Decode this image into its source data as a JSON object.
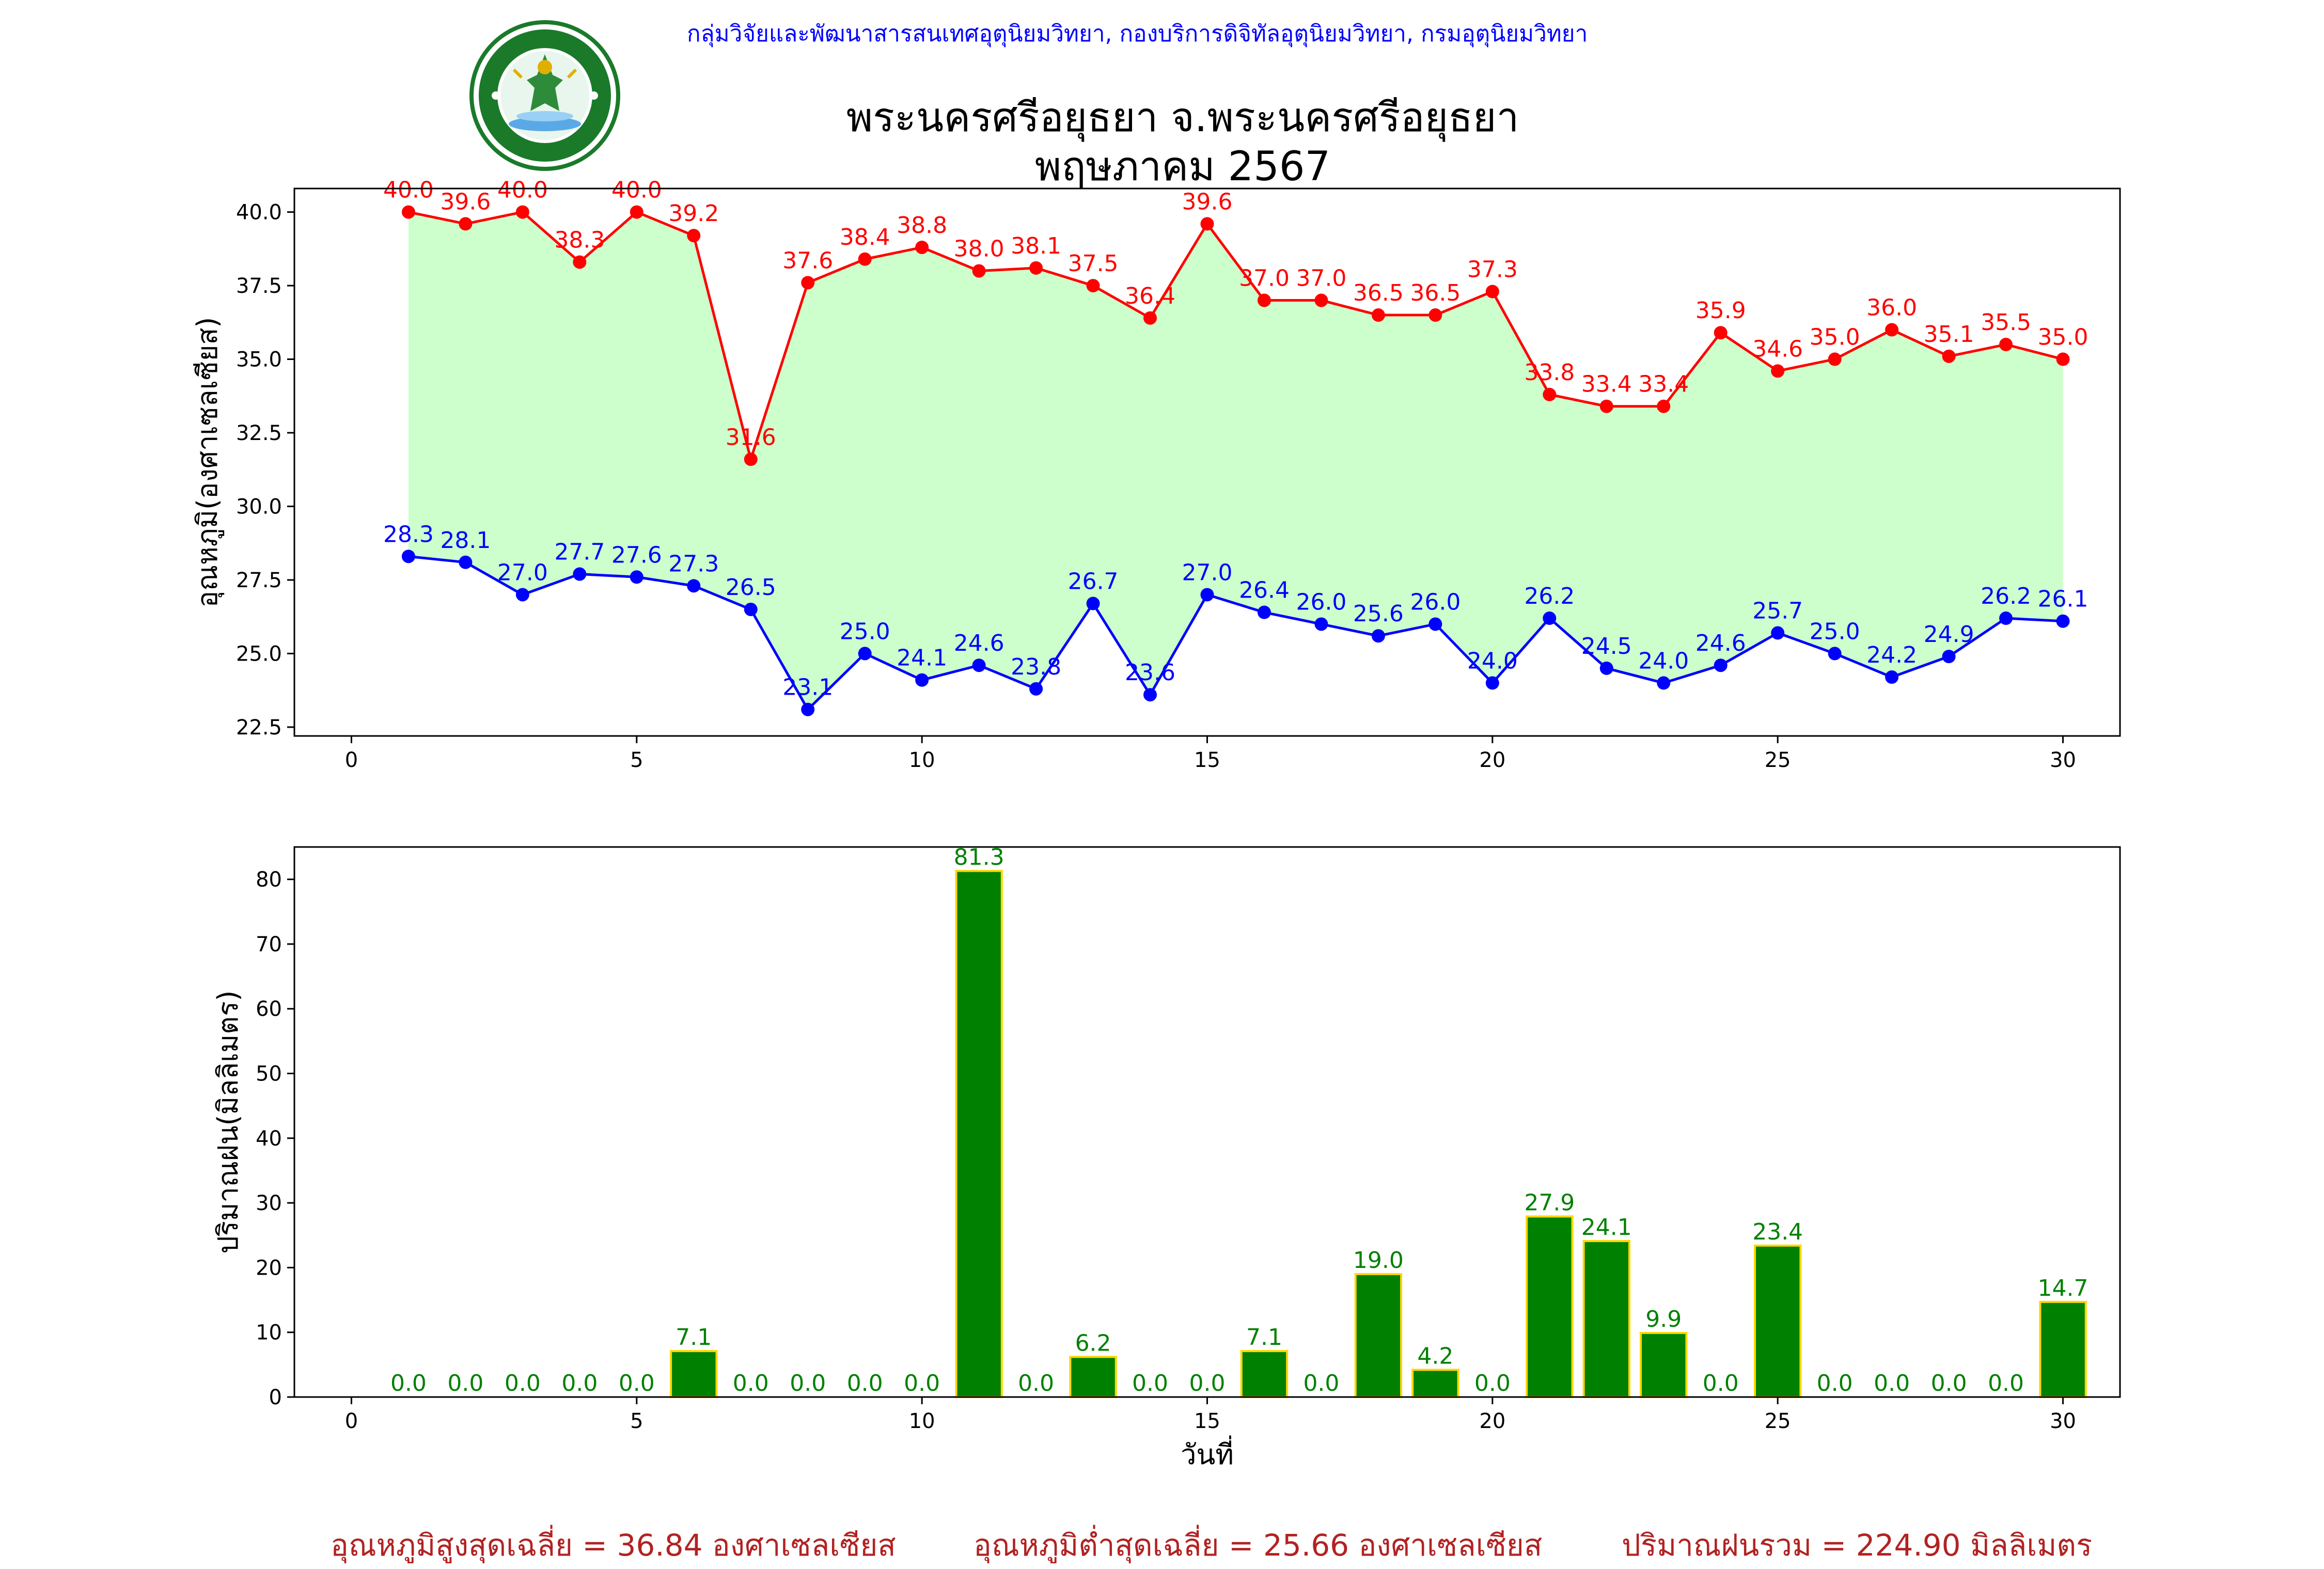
{
  "header": {
    "org_line": "กลุ่มวิจัยและพัฒนาสารสนเทศอุตุนิยมวิทยา, กองบริการดิจิทัลอุตุนิยมวิทยา, กรมอุตุนิยมวิทยา",
    "title_line1": "พระนครศรีอยุธยา จ.พระนครศรีอยุธยา",
    "title_line2": "พฤษภาคม 2567",
    "logo_text_top": "กรมอุตุนิยมวิทยา",
    "logo_text_bottom": "METEOROLOGICAL DEPARTMENT"
  },
  "footer": {
    "avg_max": "อุณหภูมิสูงสุดเฉลี่ย = 36.84 องศาเซลเซียส",
    "avg_min": "อุณหภูมิต่ำสุดเฉลี่ย = 25.66 องศาเซลเซียส",
    "total_rain": "ปริมาณฝนรวม = 224.90 มิลลิเมตร"
  },
  "chart_data": [
    {
      "type": "line",
      "ylabel": "อุณหภูมิ(องศาเซลเซียส)",
      "xlim": [
        -1,
        31
      ],
      "ylim": [
        22.2,
        40.8
      ],
      "xticks": [
        0,
        5,
        10,
        15,
        20,
        25,
        30
      ],
      "yticks": [
        22.5,
        25.0,
        27.5,
        30.0,
        32.5,
        35.0,
        37.5,
        40.0
      ],
      "x": [
        1,
        2,
        3,
        4,
        5,
        6,
        7,
        8,
        9,
        10,
        11,
        12,
        13,
        14,
        15,
        16,
        17,
        18,
        19,
        20,
        21,
        22,
        23,
        24,
        25,
        26,
        27,
        28,
        29,
        30
      ],
      "fill_color": "#ccffcc",
      "series": [
        {
          "color": "#ff0000",
          "values": [
            40.0,
            39.6,
            40.0,
            38.3,
            40.0,
            39.2,
            31.6,
            37.6,
            38.4,
            38.8,
            38.0,
            38.1,
            37.5,
            36.4,
            39.6,
            37.0,
            37.0,
            36.5,
            36.5,
            37.3,
            33.8,
            33.4,
            33.4,
            35.9,
            34.6,
            35.0,
            36.0,
            35.1,
            35.5,
            35.0
          ]
        },
        {
          "color": "#0000ff",
          "values": [
            28.3,
            28.1,
            27.0,
            27.7,
            27.6,
            27.3,
            26.5,
            23.1,
            25.0,
            24.1,
            24.6,
            23.8,
            26.7,
            23.6,
            27.0,
            26.4,
            26.0,
            25.6,
            26.0,
            24.0,
            26.2,
            24.5,
            24.0,
            24.6,
            25.7,
            25.0,
            24.2,
            24.9,
            26.2,
            26.1
          ]
        }
      ]
    },
    {
      "type": "bar",
      "ylabel": "ปริมาณฝน(มิลลิเมตร)",
      "xlabel": "วันที่",
      "xlim": [
        -1,
        31
      ],
      "ylim": [
        0,
        85
      ],
      "xticks": [
        0,
        5,
        10,
        15,
        20,
        25,
        30
      ],
      "yticks": [
        0,
        10,
        20,
        30,
        40,
        50,
        60,
        70,
        80
      ],
      "bar_color": "#008000",
      "edge_color": "#ffd700",
      "label_color": "#008000",
      "x": [
        1,
        2,
        3,
        4,
        5,
        6,
        7,
        8,
        9,
        10,
        11,
        12,
        13,
        14,
        15,
        16,
        17,
        18,
        19,
        20,
        21,
        22,
        23,
        24,
        25,
        26,
        27,
        28,
        29,
        30
      ],
      "values": [
        0.0,
        0.0,
        0.0,
        0.0,
        0.0,
        7.1,
        0.0,
        0.0,
        0.0,
        0.0,
        81.3,
        0.0,
        6.2,
        0.0,
        0.0,
        7.1,
        0.0,
        19.0,
        4.2,
        0.0,
        27.9,
        24.1,
        9.9,
        0.0,
        23.4,
        0.0,
        0.0,
        0.0,
        0.0,
        14.7
      ]
    }
  ]
}
